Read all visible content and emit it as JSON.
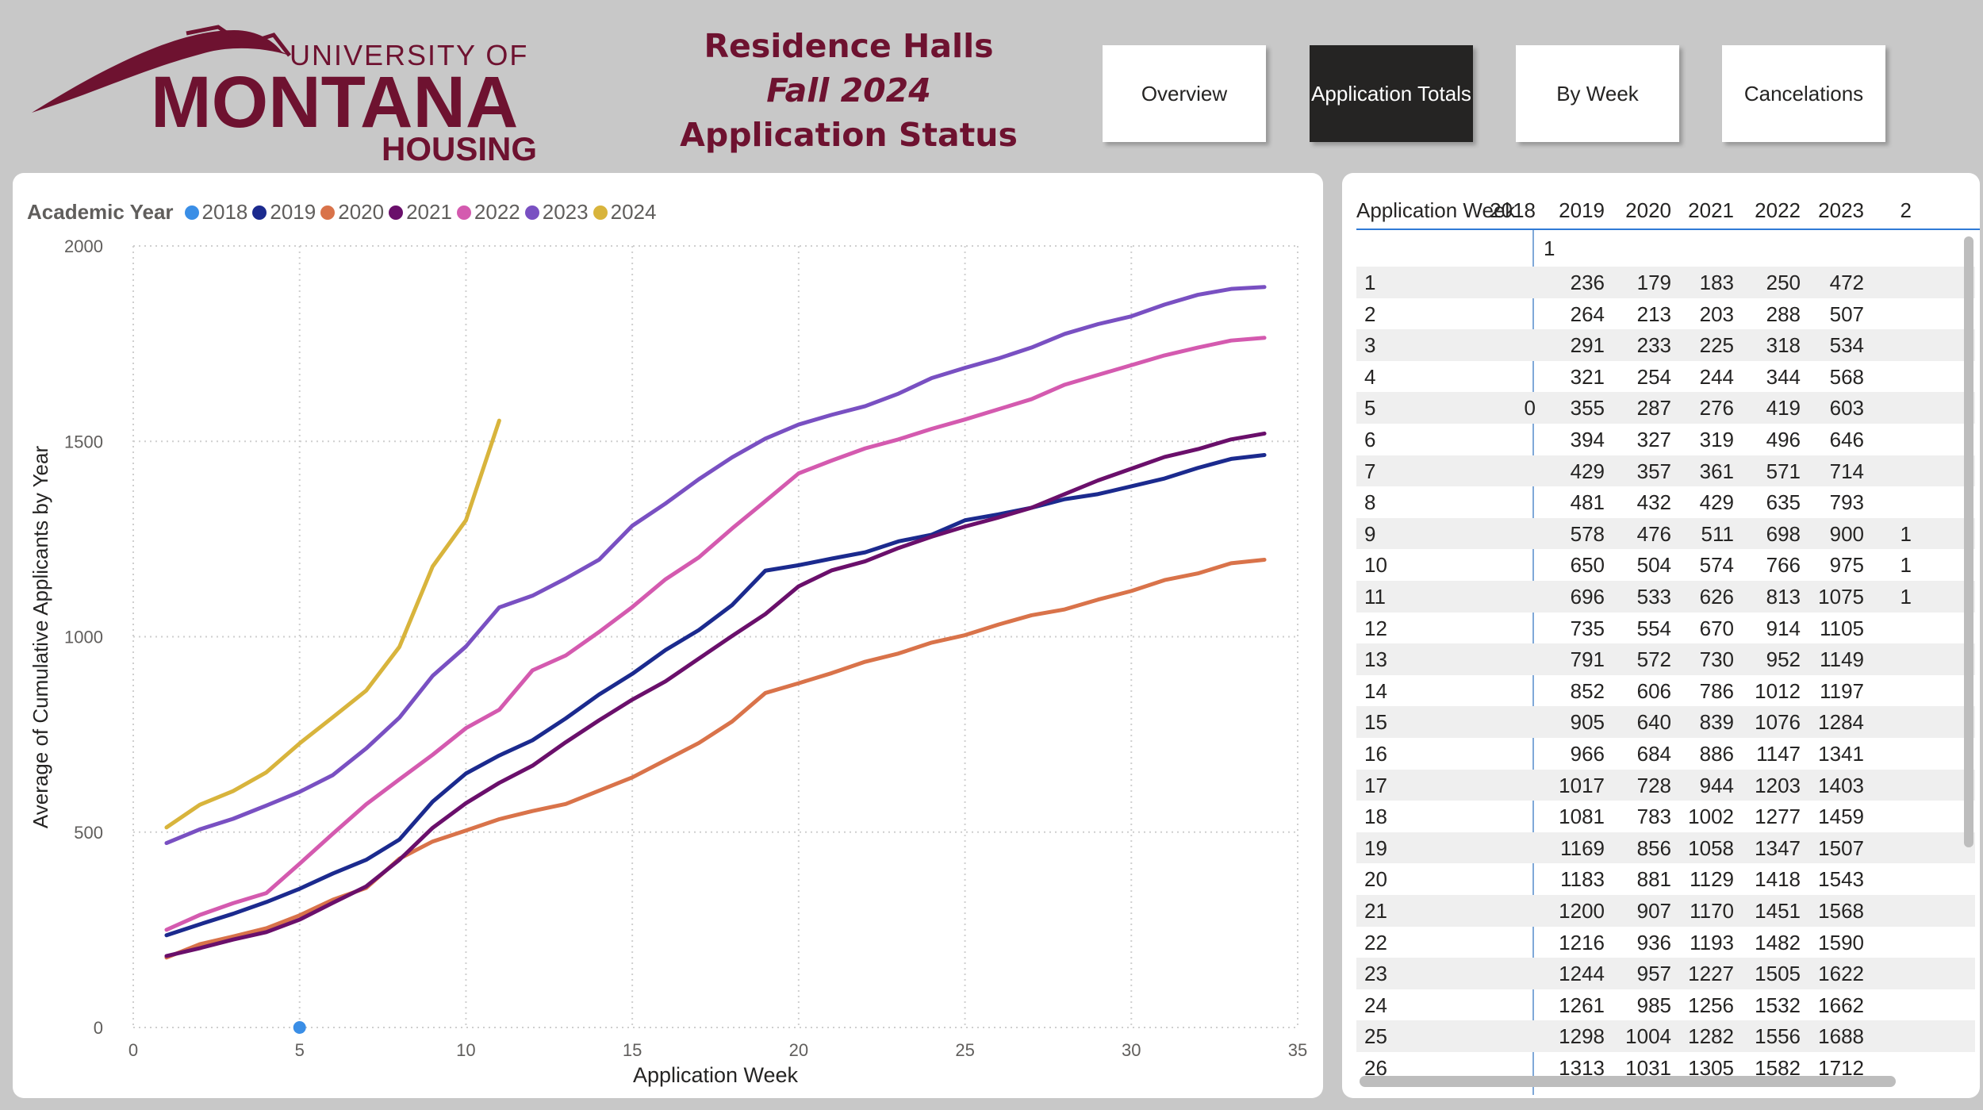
{
  "logo": {
    "line1": "UNIVERSITY OF",
    "line2": "MONTANA",
    "line3": "HOUSING"
  },
  "title": {
    "line1": "Residence Halls",
    "line2": "Fall 2024",
    "line3": "Application Status"
  },
  "nav": {
    "overview": "Overview",
    "application_totals": "Application Totals",
    "by_week": "By Week",
    "cancelations": "Cancelations"
  },
  "colors": {
    "brand": "#6e1230",
    "y2018": "#3a8ee6",
    "y2019": "#1b2a8e",
    "y2020": "#d9734a",
    "y2021": "#6a0f6b",
    "y2022": "#d45aaf",
    "y2023": "#7950c2",
    "y2024": "#d8b43c"
  },
  "chart_data": {
    "type": "line",
    "legend_title": "Academic Year",
    "xlabel": "Application Week",
    "ylabel": "Average of Cumulative Applicants by Year",
    "xlim": [
      0,
      35
    ],
    "ylim": [
      0,
      2000
    ],
    "x_ticks": [
      "0",
      "5",
      "10",
      "15",
      "20",
      "25",
      "30",
      "35"
    ],
    "y_ticks": [
      "0",
      "500",
      "1000",
      "1500",
      "2000"
    ],
    "series": [
      {
        "name": "2018",
        "x": [
          5
        ],
        "values": [
          0
        ]
      },
      {
        "name": "2019",
        "x": [
          1,
          2,
          3,
          4,
          5,
          6,
          7,
          8,
          9,
          10,
          11,
          12,
          13,
          14,
          15,
          16,
          17,
          18,
          19,
          20,
          21,
          22,
          23,
          24,
          25,
          26,
          27,
          28,
          29,
          30,
          31,
          32,
          33,
          34
        ],
        "values": [
          236,
          264,
          291,
          321,
          355,
          394,
          429,
          481,
          578,
          650,
          696,
          735,
          791,
          852,
          905,
          966,
          1017,
          1081,
          1169,
          1183,
          1200,
          1216,
          1244,
          1261,
          1298,
          1313,
          1330,
          1352,
          1365,
          1385,
          1405,
          1432,
          1455,
          1465
        ]
      },
      {
        "name": "2020",
        "x": [
          1,
          2,
          3,
          4,
          5,
          6,
          7,
          8,
          9,
          10,
          11,
          12,
          13,
          14,
          15,
          16,
          17,
          18,
          19,
          20,
          21,
          22,
          23,
          24,
          25,
          26,
          27,
          28,
          29,
          30,
          31,
          32,
          33,
          34
        ],
        "values": [
          179,
          213,
          233,
          254,
          287,
          327,
          357,
          432,
          476,
          504,
          533,
          554,
          572,
          606,
          640,
          684,
          728,
          783,
          856,
          881,
          907,
          936,
          957,
          985,
          1004,
          1031,
          1055,
          1070,
          1095,
          1117,
          1145,
          1162,
          1188,
          1197
        ]
      },
      {
        "name": "2021",
        "x": [
          1,
          2,
          3,
          4,
          5,
          6,
          7,
          8,
          9,
          10,
          11,
          12,
          13,
          14,
          15,
          16,
          17,
          18,
          19,
          20,
          21,
          22,
          23,
          24,
          25,
          26,
          27,
          28,
          29,
          30,
          31,
          32,
          33,
          34
        ],
        "values": [
          183,
          203,
          225,
          244,
          276,
          319,
          361,
          429,
          511,
          574,
          626,
          670,
          730,
          786,
          839,
          886,
          944,
          1002,
          1058,
          1129,
          1170,
          1193,
          1227,
          1256,
          1282,
          1305,
          1330,
          1365,
          1400,
          1430,
          1460,
          1480,
          1505,
          1520
        ]
      },
      {
        "name": "2022",
        "x": [
          1,
          2,
          3,
          4,
          5,
          6,
          7,
          8,
          9,
          10,
          11,
          12,
          13,
          14,
          15,
          16,
          17,
          18,
          19,
          20,
          21,
          22,
          23,
          24,
          25,
          26,
          27,
          28,
          29,
          30,
          31,
          32,
          33,
          34
        ],
        "values": [
          250,
          288,
          318,
          344,
          419,
          496,
          571,
          635,
          698,
          766,
          813,
          914,
          952,
          1012,
          1076,
          1147,
          1203,
          1277,
          1347,
          1418,
          1451,
          1482,
          1505,
          1532,
          1556,
          1582,
          1608,
          1645,
          1670,
          1695,
          1720,
          1740,
          1758,
          1765
        ]
      },
      {
        "name": "2023",
        "x": [
          1,
          2,
          3,
          4,
          5,
          6,
          7,
          8,
          9,
          10,
          11,
          12,
          13,
          14,
          15,
          16,
          17,
          18,
          19,
          20,
          21,
          22,
          23,
          24,
          25,
          26,
          27,
          28,
          29,
          30,
          31,
          32,
          33,
          34
        ],
        "values": [
          472,
          507,
          534,
          568,
          603,
          646,
          714,
          793,
          900,
          975,
          1075,
          1105,
          1149,
          1197,
          1284,
          1341,
          1403,
          1459,
          1507,
          1543,
          1568,
          1590,
          1622,
          1662,
          1688,
          1712,
          1740,
          1775,
          1800,
          1820,
          1850,
          1875,
          1890,
          1895
        ]
      },
      {
        "name": "2024",
        "x": [
          1,
          2,
          3,
          4,
          5,
          6,
          7,
          8,
          9,
          10,
          11
        ],
        "values": [
          512,
          570,
          605,
          653,
          727,
          794,
          862,
          974,
          1180,
          1298,
          1553
        ]
      }
    ]
  },
  "table": {
    "columns": [
      "Application Week",
      "2018",
      "2019",
      "2020",
      "2021",
      "2022",
      "2023",
      "2"
    ],
    "first_row_2018": "1",
    "rows": [
      [
        "1",
        "",
        "236",
        "179",
        "183",
        "250",
        "472",
        ""
      ],
      [
        "2",
        "",
        "264",
        "213",
        "203",
        "288",
        "507",
        ""
      ],
      [
        "3",
        "",
        "291",
        "233",
        "225",
        "318",
        "534",
        ""
      ],
      [
        "4",
        "",
        "321",
        "254",
        "244",
        "344",
        "568",
        ""
      ],
      [
        "5",
        "0",
        "355",
        "287",
        "276",
        "419",
        "603",
        ""
      ],
      [
        "6",
        "",
        "394",
        "327",
        "319",
        "496",
        "646",
        ""
      ],
      [
        "7",
        "",
        "429",
        "357",
        "361",
        "571",
        "714",
        ""
      ],
      [
        "8",
        "",
        "481",
        "432",
        "429",
        "635",
        "793",
        ""
      ],
      [
        "9",
        "",
        "578",
        "476",
        "511",
        "698",
        "900",
        "1"
      ],
      [
        "10",
        "",
        "650",
        "504",
        "574",
        "766",
        "975",
        "1"
      ],
      [
        "11",
        "",
        "696",
        "533",
        "626",
        "813",
        "1075",
        "1"
      ],
      [
        "12",
        "",
        "735",
        "554",
        "670",
        "914",
        "1105",
        ""
      ],
      [
        "13",
        "",
        "791",
        "572",
        "730",
        "952",
        "1149",
        ""
      ],
      [
        "14",
        "",
        "852",
        "606",
        "786",
        "1012",
        "1197",
        ""
      ],
      [
        "15",
        "",
        "905",
        "640",
        "839",
        "1076",
        "1284",
        ""
      ],
      [
        "16",
        "",
        "966",
        "684",
        "886",
        "1147",
        "1341",
        ""
      ],
      [
        "17",
        "",
        "1017",
        "728",
        "944",
        "1203",
        "1403",
        ""
      ],
      [
        "18",
        "",
        "1081",
        "783",
        "1002",
        "1277",
        "1459",
        ""
      ],
      [
        "19",
        "",
        "1169",
        "856",
        "1058",
        "1347",
        "1507",
        ""
      ],
      [
        "20",
        "",
        "1183",
        "881",
        "1129",
        "1418",
        "1543",
        ""
      ],
      [
        "21",
        "",
        "1200",
        "907",
        "1170",
        "1451",
        "1568",
        ""
      ],
      [
        "22",
        "",
        "1216",
        "936",
        "1193",
        "1482",
        "1590",
        ""
      ],
      [
        "23",
        "",
        "1244",
        "957",
        "1227",
        "1505",
        "1622",
        ""
      ],
      [
        "24",
        "",
        "1261",
        "985",
        "1256",
        "1532",
        "1662",
        ""
      ],
      [
        "25",
        "",
        "1298",
        "1004",
        "1282",
        "1556",
        "1688",
        ""
      ],
      [
        "26",
        "",
        "1313",
        "1031",
        "1305",
        "1582",
        "1712",
        ""
      ]
    ]
  }
}
